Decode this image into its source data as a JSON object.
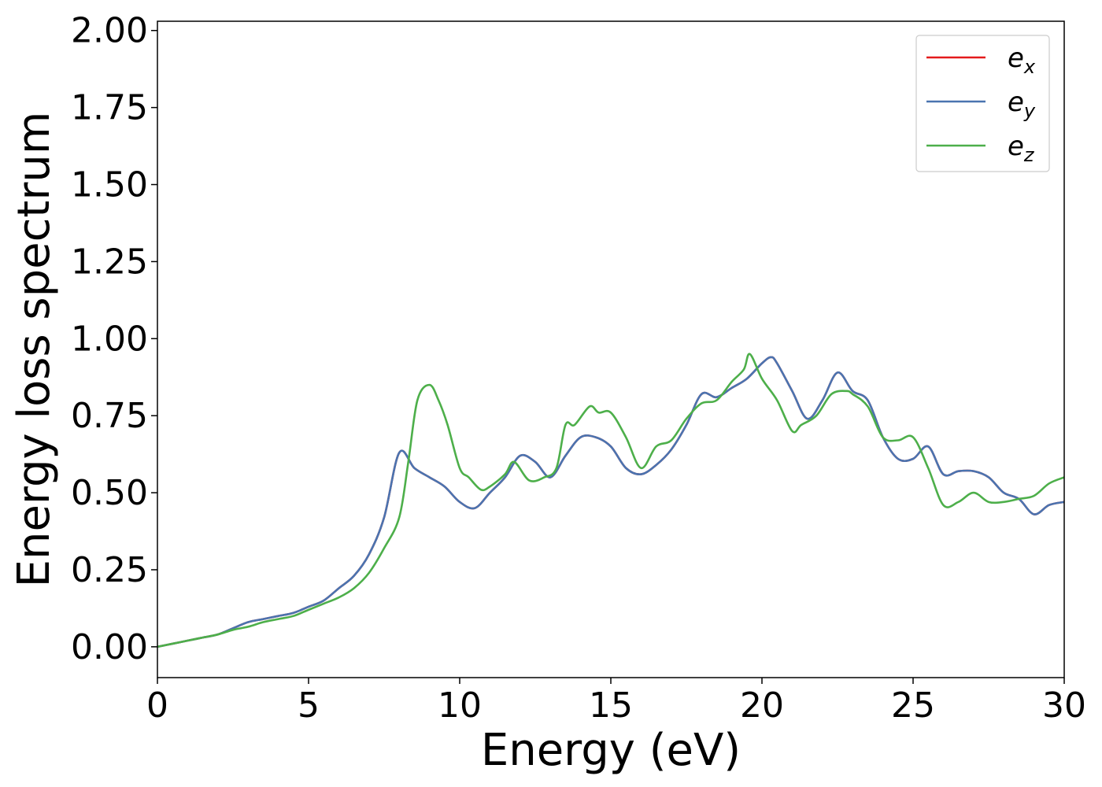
{
  "chart_data": {
    "type": "line",
    "title": "",
    "xlabel": "Energy (eV)",
    "ylabel": "Energy loss spectrum",
    "xlim": [
      0,
      30
    ],
    "ylim": [
      -0.1,
      2.03
    ],
    "xticks": [
      0,
      5,
      10,
      15,
      20,
      25,
      30
    ],
    "yticks": [
      0.0,
      0.25,
      0.5,
      0.75,
      1.0,
      1.25,
      1.5,
      1.75,
      2.0
    ],
    "xtick_labels": [
      "0",
      "5",
      "10",
      "15",
      "20",
      "25",
      "30"
    ],
    "ytick_labels": [
      "0.00",
      "0.25",
      "0.50",
      "0.75",
      "1.00",
      "1.25",
      "1.50",
      "1.75",
      "2.00"
    ],
    "grid": false,
    "legend_position": "top-right",
    "series": [
      {
        "name": "e_x",
        "legend_base": "e",
        "legend_sub": "x",
        "color": "#e41a1c",
        "x": [
          0,
          0.5,
          1,
          1.5,
          2,
          2.5,
          3,
          3.5,
          4,
          4.5,
          5,
          5.5,
          6,
          6.5,
          7,
          7.5,
          8,
          8.5,
          9,
          9.5,
          10,
          10.5,
          11,
          11.5,
          12,
          12.5,
          13,
          13.5,
          14,
          14.5,
          15,
          15.5,
          16,
          16.5,
          17,
          17.5,
          18,
          18.5,
          19,
          19.5,
          20,
          20.3,
          20.5,
          21,
          21.5,
          22,
          22.5,
          23,
          23.5,
          24,
          24.5,
          25,
          25.5,
          26,
          26.5,
          27,
          27.5,
          28,
          28.5,
          29,
          29.5,
          30
        ],
        "y": [
          0.0,
          0.01,
          0.02,
          0.03,
          0.04,
          0.06,
          0.08,
          0.09,
          0.1,
          0.11,
          0.13,
          0.15,
          0.19,
          0.23,
          0.3,
          0.42,
          0.63,
          0.58,
          0.55,
          0.52,
          0.47,
          0.45,
          0.5,
          0.55,
          0.62,
          0.6,
          0.55,
          0.62,
          0.68,
          0.68,
          0.65,
          0.58,
          0.56,
          0.59,
          0.64,
          0.72,
          0.82,
          0.81,
          0.84,
          0.87,
          0.92,
          0.94,
          0.92,
          0.83,
          0.74,
          0.8,
          0.89,
          0.83,
          0.8,
          0.68,
          0.61,
          0.61,
          0.65,
          0.56,
          0.57,
          0.57,
          0.55,
          0.5,
          0.48,
          0.43,
          0.46,
          0.47
        ]
      },
      {
        "name": "e_y",
        "legend_base": "e",
        "legend_sub": "y",
        "color": "#4a74b0",
        "x": [
          0,
          0.5,
          1,
          1.5,
          2,
          2.5,
          3,
          3.5,
          4,
          4.5,
          5,
          5.5,
          6,
          6.5,
          7,
          7.5,
          8,
          8.5,
          9,
          9.5,
          10,
          10.5,
          11,
          11.5,
          12,
          12.5,
          13,
          13.5,
          14,
          14.5,
          15,
          15.5,
          16,
          16.5,
          17,
          17.5,
          18,
          18.5,
          19,
          19.5,
          20,
          20.3,
          20.5,
          21,
          21.5,
          22,
          22.5,
          23,
          23.5,
          24,
          24.5,
          25,
          25.5,
          26,
          26.5,
          27,
          27.5,
          28,
          28.5,
          29,
          29.5,
          30
        ],
        "y": [
          0.0,
          0.01,
          0.02,
          0.03,
          0.04,
          0.06,
          0.08,
          0.09,
          0.1,
          0.11,
          0.13,
          0.15,
          0.19,
          0.23,
          0.3,
          0.42,
          0.63,
          0.58,
          0.55,
          0.52,
          0.47,
          0.45,
          0.5,
          0.55,
          0.62,
          0.6,
          0.55,
          0.62,
          0.68,
          0.68,
          0.65,
          0.58,
          0.56,
          0.59,
          0.64,
          0.72,
          0.82,
          0.81,
          0.84,
          0.87,
          0.92,
          0.94,
          0.92,
          0.83,
          0.74,
          0.8,
          0.89,
          0.83,
          0.8,
          0.68,
          0.61,
          0.61,
          0.65,
          0.56,
          0.57,
          0.57,
          0.55,
          0.5,
          0.48,
          0.43,
          0.46,
          0.47
        ]
      },
      {
        "name": "e_z",
        "legend_base": "e",
        "legend_sub": "z",
        "color": "#4daf4a",
        "x": [
          0,
          0.5,
          1,
          1.5,
          2,
          2.5,
          3,
          3.5,
          4,
          4.5,
          5,
          5.5,
          6,
          6.5,
          7,
          7.5,
          8,
          8.3,
          8.6,
          9,
          9.3,
          9.6,
          10,
          10.3,
          10.7,
          11,
          11.5,
          11.8,
          12.3,
          12.8,
          13.2,
          13.5,
          13.8,
          14.3,
          14.6,
          15,
          15.5,
          16,
          16.5,
          17,
          17.5,
          18,
          18.5,
          19,
          19.4,
          19.6,
          20,
          20.5,
          21,
          21.3,
          21.8,
          22.3,
          22.8,
          23,
          23.5,
          24,
          24.5,
          25,
          25.5,
          26,
          26.5,
          27,
          27.5,
          28,
          28.5,
          29,
          29.5,
          30
        ],
        "y": [
          0.0,
          0.01,
          0.02,
          0.03,
          0.04,
          0.055,
          0.065,
          0.08,
          0.09,
          0.1,
          0.12,
          0.14,
          0.16,
          0.19,
          0.24,
          0.32,
          0.42,
          0.6,
          0.8,
          0.85,
          0.8,
          0.72,
          0.58,
          0.55,
          0.51,
          0.52,
          0.56,
          0.6,
          0.54,
          0.55,
          0.58,
          0.72,
          0.72,
          0.78,
          0.76,
          0.76,
          0.68,
          0.58,
          0.65,
          0.67,
          0.74,
          0.79,
          0.8,
          0.86,
          0.9,
          0.95,
          0.87,
          0.8,
          0.7,
          0.72,
          0.75,
          0.82,
          0.83,
          0.82,
          0.78,
          0.68,
          0.67,
          0.68,
          0.58,
          0.46,
          0.47,
          0.5,
          0.47,
          0.47,
          0.48,
          0.49,
          0.53,
          0.55
        ]
      }
    ]
  }
}
